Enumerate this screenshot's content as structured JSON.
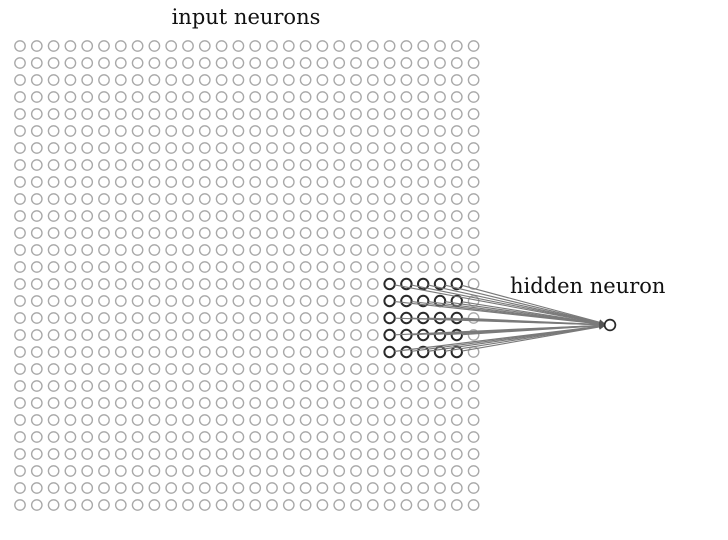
{
  "labels": {
    "input": "input neurons",
    "hidden": "hidden neuron"
  },
  "input_grid": {
    "rows": 28,
    "cols": 28
  },
  "receptive_field": {
    "rows": 5,
    "cols": 5,
    "start_row": 14,
    "start_col": 22
  },
  "colors": {
    "inactive_neuron": "#a8a8a8",
    "active_neuron": "#2a2a2a",
    "connection": "#7a7a7a",
    "hidden_neuron": "#2a2a2a",
    "background": "#ffffff"
  }
}
